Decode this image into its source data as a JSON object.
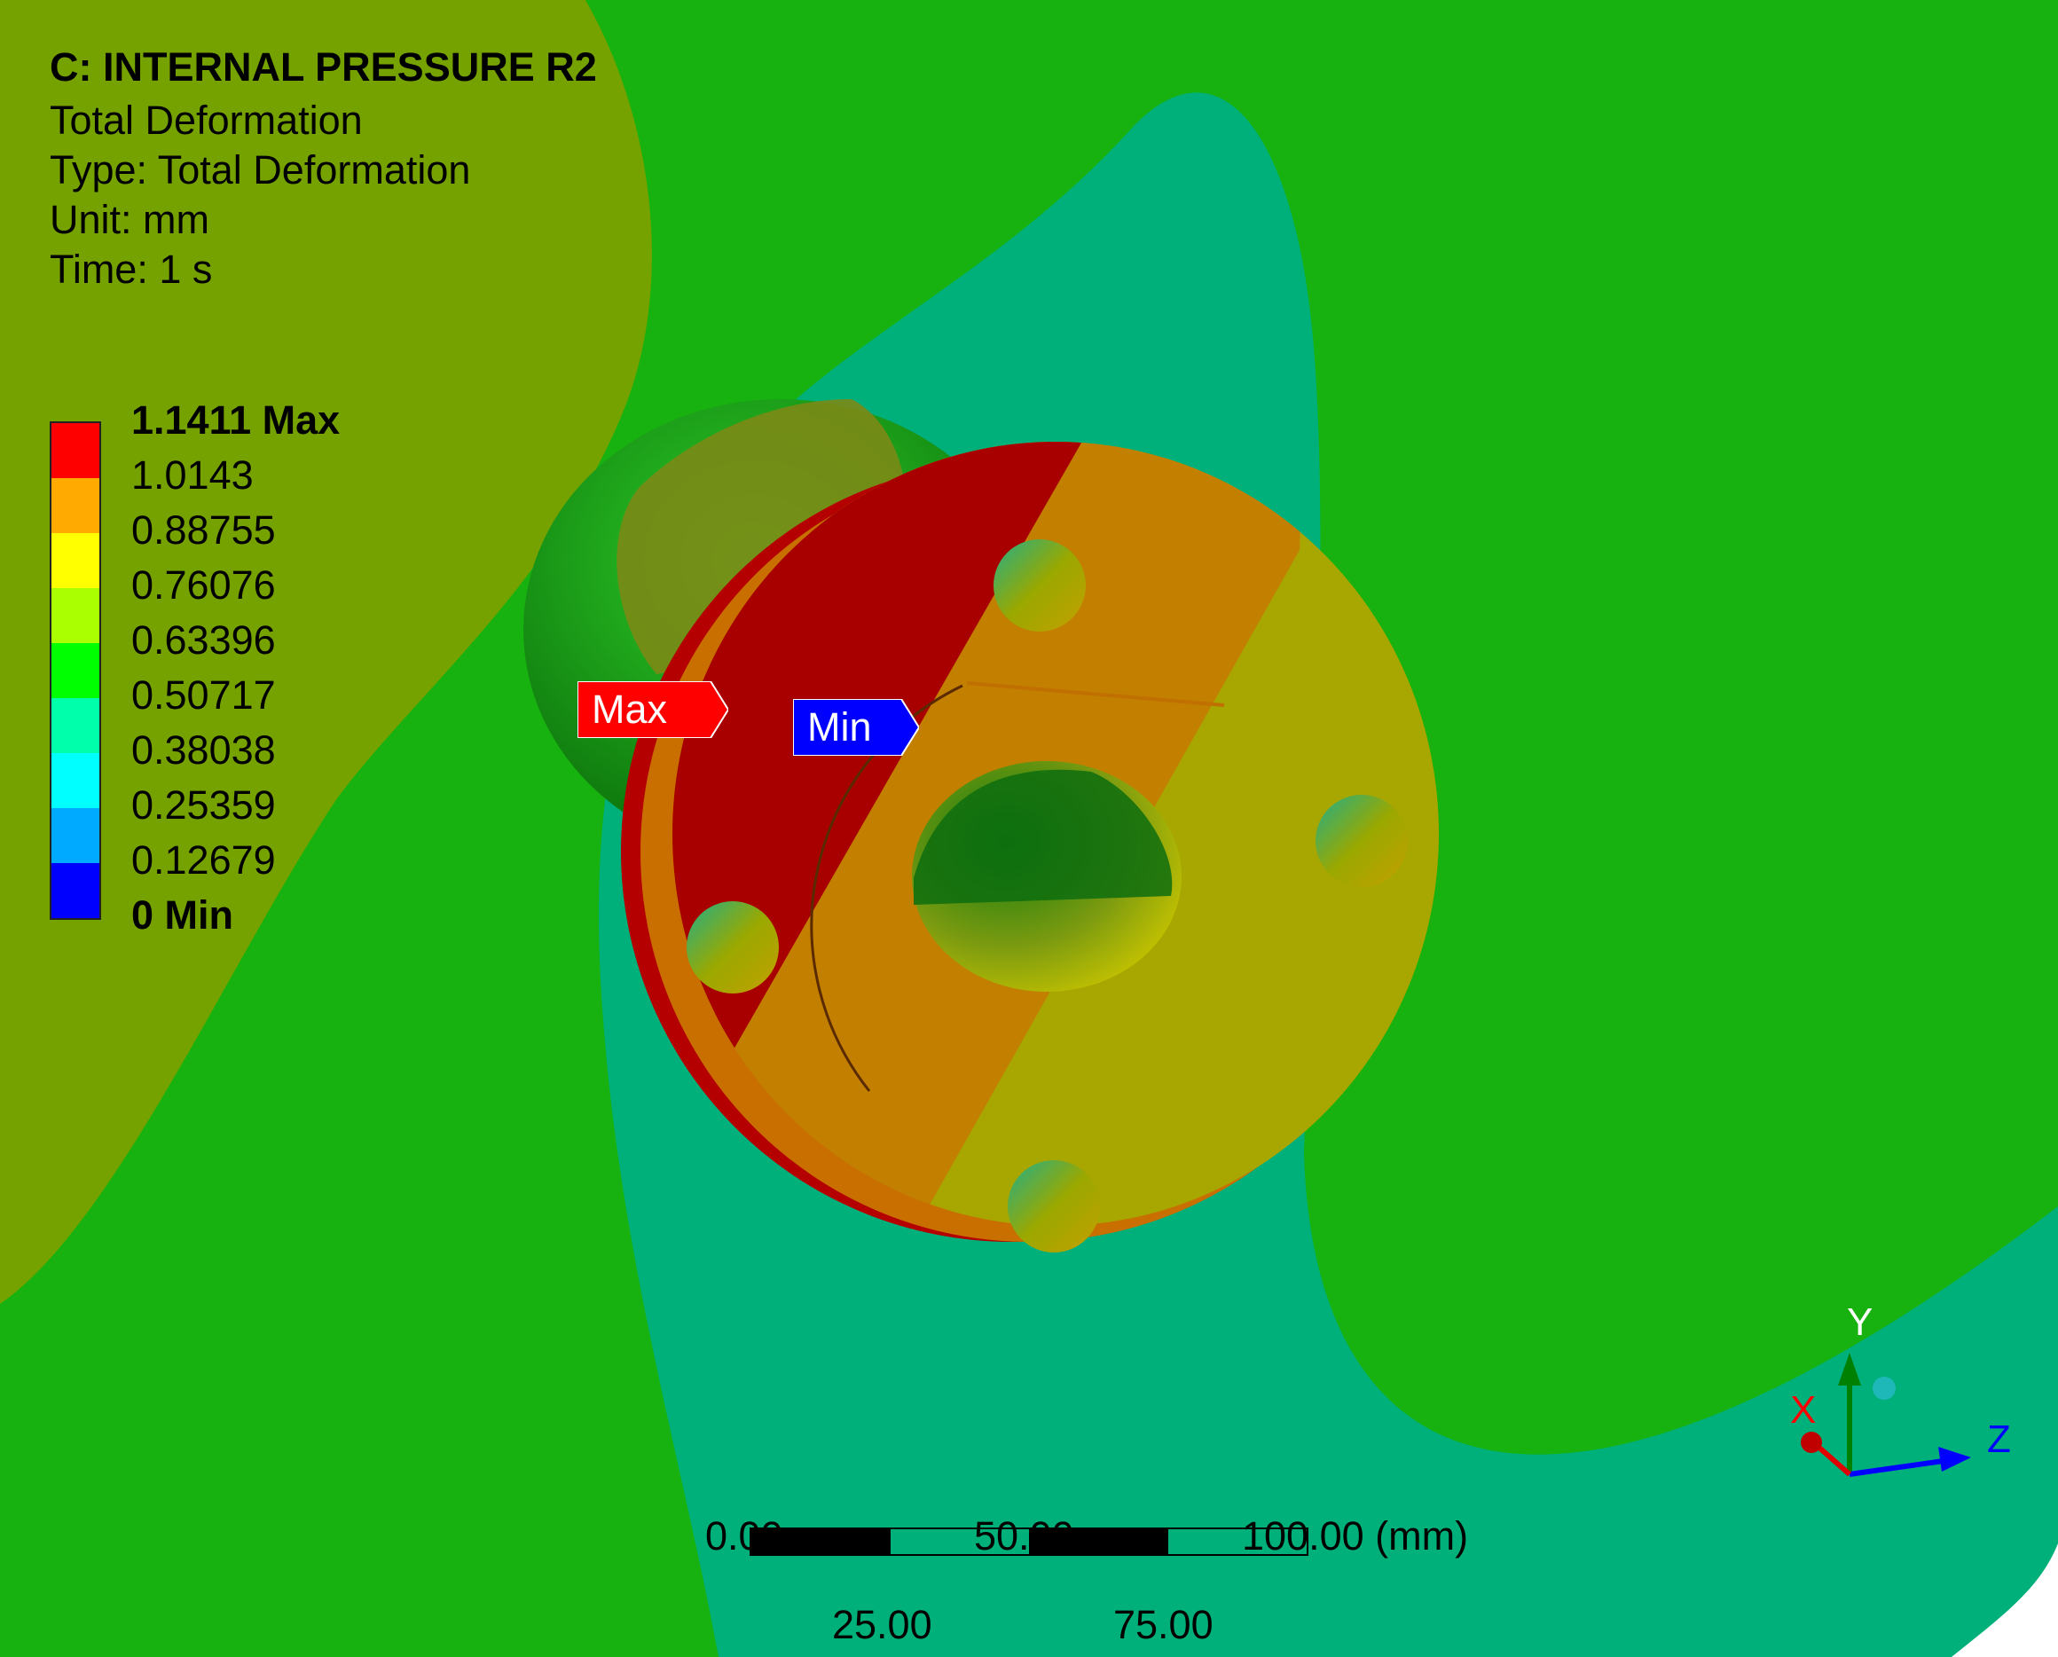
{
  "header": {
    "title": "C: INTERNAL PRESSURE R2",
    "lines": [
      "Total Deformation",
      "Type: Total Deformation",
      "Unit: mm",
      "Time: 1 s"
    ]
  },
  "legend": {
    "labels": [
      "1.1411 Max",
      "1.0143",
      "0.88755",
      "0.76076",
      "0.63396",
      "0.50717",
      "0.38038",
      "0.25359",
      "0.12679",
      "0 Min"
    ],
    "colors": [
      "#ff0000",
      "#ffaa00",
      "#ffff00",
      "#aaff00",
      "#00ff00",
      "#00ffaa",
      "#00ffff",
      "#00aaff",
      "#0000ff"
    ]
  },
  "probes": {
    "max": {
      "label": "Max",
      "color": "#ff0000"
    },
    "min": {
      "label": "Min",
      "color": "#0000ff"
    }
  },
  "scale_bar": {
    "top_labels": [
      "0.00",
      "50.00",
      "100.00 (mm)"
    ],
    "bottom_labels": [
      "25.00",
      "75.00"
    ]
  },
  "triad": {
    "x": "X",
    "y": "Y",
    "z": "Z",
    "x_color": "#ff0000",
    "y_color": "#008000",
    "z_color": "#0000ff"
  }
}
